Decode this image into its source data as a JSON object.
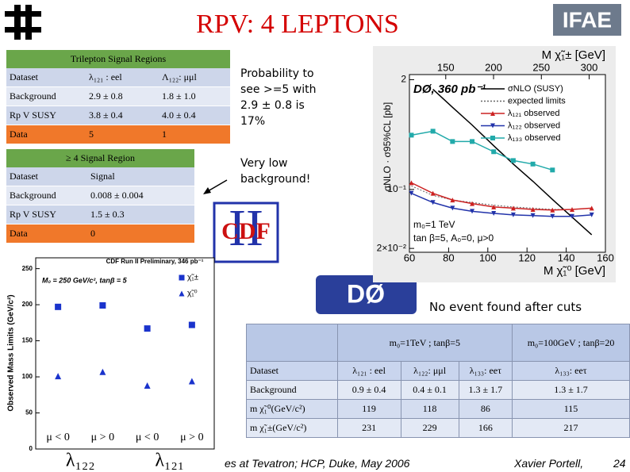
{
  "header": {
    "title": "RPV: 4 LEPTONS"
  },
  "logos": {
    "ifae": "IFAE",
    "cdf_run": "II",
    "cdf": "CDF",
    "d0": "DØ"
  },
  "trilepton_table": {
    "title": "Trilepton Signal Regions",
    "header": [
      "Dataset",
      "λ₁₂₁ : eel",
      "Λ₁₂₂: μμl"
    ],
    "rows": [
      [
        "Background",
        "2.9 ± 0.8",
        "1.8 ± 1.0"
      ],
      [
        "Rp V SUSY",
        "3.8 ± 0.4",
        "4.0 ± 0.4"
      ],
      [
        "Data",
        "5",
        "1"
      ]
    ]
  },
  "four_lepton_table": {
    "title": "≥ 4 Signal Region",
    "header": [
      "Dataset",
      "Signal"
    ],
    "rows": [
      [
        "Background",
        "0.008 ± 0.004"
      ],
      [
        "Rp V SUSY",
        "1.5 ± 0.3"
      ],
      [
        "Data",
        "0"
      ]
    ]
  },
  "notes": {
    "probability": "Probability to see >=5 with 2.9 ± 0.8 is 17%",
    "low_background": "Very low background!",
    "no_event": "No event found after cuts"
  },
  "d0_table": {
    "group_header": [
      "m₀=1TeV ; tanβ=5",
      "m₀=100GeV ; tanβ=20"
    ],
    "header": [
      "Dataset",
      "λ₁₂₁ : eel",
      "λ₁₂₂: μμl",
      "λ₁₃₃: eeτ",
      "λ₁₃₃: eeτ"
    ],
    "rows": [
      [
        "Background",
        "0.9 ± 0.4",
        "0.4 ± 0.1",
        "1.3 ± 1.7",
        "1.3 ± 1.7"
      ],
      [
        "m χ̃₁⁰(GeV/c²)",
        "119",
        "118",
        "86",
        "115"
      ],
      [
        "m χ̃₁±(GeV/c²)",
        "231",
        "229",
        "166",
        "217"
      ]
    ]
  },
  "footer": {
    "talk": "es at Tevatron; HCP, Duke, May 2006",
    "author": "Xavier Portell,",
    "page": "24"
  },
  "chart_data": [
    {
      "type": "scatter",
      "title": "CDF Run II Preliminary, 346 pb⁻¹",
      "annotation": "M₀ = 250 GeV/c², tanβ = 5",
      "y_label": "Observed Mass Limits (GeV/c²)",
      "categories": [
        "μ < 0",
        "μ > 0",
        "μ < 0",
        "μ > 0"
      ],
      "groups": [
        "λ₁₂₂",
        "λ₁₂₁"
      ],
      "series": [
        {
          "name": "χ̃₁±",
          "color": "#1a33cc",
          "marker": "square",
          "values": [
            197,
            199,
            167,
            172
          ]
        },
        {
          "name": "χ̃₁⁰",
          "color": "#1a33cc",
          "marker": "triangle",
          "values": [
            101,
            107,
            88,
            94
          ]
        }
      ],
      "ylim": [
        0,
        265
      ],
      "yticks": [
        0,
        50,
        100,
        150,
        200,
        250
      ]
    },
    {
      "type": "line",
      "log_y": true,
      "title": "DØ, 360 pb⁻¹",
      "x_label": "M χ̃₁⁰ [GeV]",
      "x2_label": "M χ̃₁± [GeV]",
      "y_label": "σNLO · σ95%CL [pb]",
      "annotations": [
        "m₀=1 TeV",
        "tan β=5, A₀=0, μ>0"
      ],
      "x": [
        61,
        72,
        82,
        92,
        103,
        113,
        123,
        133,
        143,
        153
      ],
      "series": [
        {
          "name": "σNLO (SUSY)",
          "color": "#000000",
          "style": "solid",
          "marker": "none",
          "values": [
            null,
            1.54,
            0.94,
            0.58,
            0.33,
            0.2,
            0.125,
            0.076,
            0.047,
            0.029
          ]
        },
        {
          "name": "expected limits",
          "color": "#666666",
          "style": "dotted",
          "marker": "none",
          "values": [
            0.11,
            0.085,
            0.075,
            0.07,
            0.065,
            0.062,
            0.06,
            0.058,
            0.058,
            0.06
          ]
        },
        {
          "name": "λ₁₂₁ observed",
          "color": "#cc2222",
          "style": "solid",
          "marker": "triangle",
          "values": [
            0.12,
            0.09,
            0.075,
            0.068,
            0.062,
            0.06,
            0.058,
            0.057,
            0.058,
            0.06
          ]
        },
        {
          "name": "λ₁₂₂ observed",
          "color": "#2233aa",
          "style": "solid",
          "marker": "triangle-down",
          "values": [
            0.09,
            0.07,
            0.06,
            0.055,
            0.052,
            0.05,
            0.049,
            0.048,
            0.048,
            0.05
          ]
        },
        {
          "name": "λ₁₃₃ observed",
          "color": "#22aaaa",
          "style": "solid",
          "marker": "square",
          "values": [
            0.44,
            0.49,
            0.37,
            0.37,
            0.28,
            0.22,
            0.2,
            0.17,
            null,
            null
          ]
        }
      ],
      "xlim": [
        60,
        160
      ],
      "xticks": [
        60,
        80,
        100,
        120,
        140,
        160
      ],
      "x2lim": [
        112,
        317
      ],
      "x2ticks": [
        150,
        200,
        250,
        300
      ],
      "ylim": [
        0.018,
        2.3
      ],
      "yticks": [
        2,
        {
          "value": 0.1,
          "label": "10⁻¹"
        },
        {
          "value": 0.02,
          "label": "2×10⁻²"
        }
      ]
    }
  ]
}
